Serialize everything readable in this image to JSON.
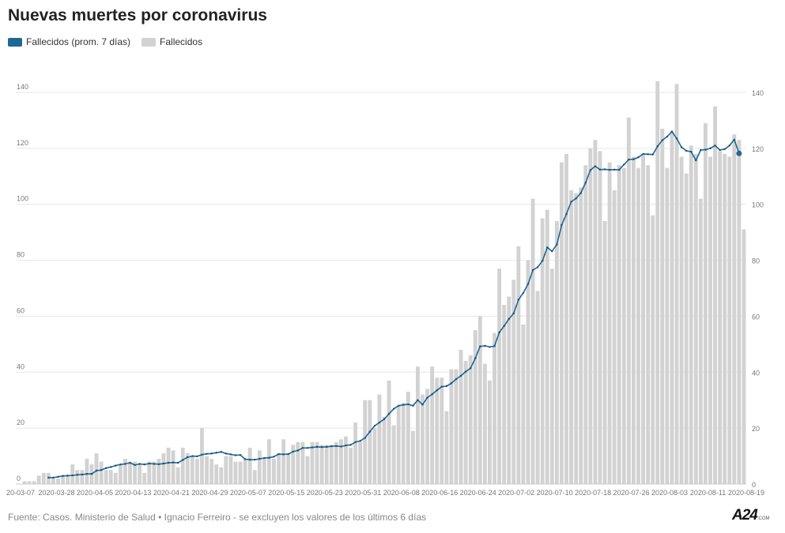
{
  "title": "Nuevas muertes por coronavirus",
  "legend": [
    {
      "label": "Fallecidos (prom. 7 días)",
      "color": "#1f6896"
    },
    {
      "label": "Fallecidos",
      "color": "#d2d2d2"
    }
  ],
  "footer": "Fuente: Casos. Ministerio de Salud • Ignacio Ferreiro - se excluyen los valores de los últimos 6 días",
  "logo": {
    "main": "A24",
    "sub": ".COM"
  },
  "chart_data": {
    "type": "bar",
    "title": "Nuevas muertes por coronavirus",
    "xlabel": "",
    "ylabel": "",
    "ylim": [
      0,
      140
    ],
    "yticks": [
      0,
      20,
      40,
      60,
      80,
      100,
      120,
      140
    ],
    "grid": true,
    "legend_position": "top-left",
    "x_tick_labels": [
      "20-03-07",
      "2020-03-28",
      "2020-04-05",
      "2020-04-13",
      "2020-04-21",
      "2020-04-29",
      "2020-05-07",
      "2020-05-15",
      "2020-05-23",
      "2020-05-31",
      "2020-06-08",
      "2020-06-16",
      "2020-06-24",
      "2020-07-02",
      "2020-07-10",
      "2020-07-18",
      "2020-07-26",
      "2020-08-03",
      "2020-08-11",
      "2020-08-19"
    ],
    "series": [
      {
        "name": "Fallecidos",
        "kind": "bar",
        "color": "#d2d2d2",
        "values": [
          1,
          1,
          1,
          3,
          4,
          4,
          2,
          2,
          3,
          3,
          7,
          5,
          5,
          9,
          7,
          11,
          8,
          5,
          5,
          4,
          7,
          9,
          8,
          8,
          7,
          4,
          8,
          8,
          9,
          11,
          13,
          12,
          6,
          13,
          11,
          10,
          9,
          20,
          10,
          9,
          7,
          6,
          10,
          10,
          8,
          8,
          9,
          13,
          5,
          12,
          9,
          16,
          9,
          11,
          16,
          11,
          14,
          15,
          15,
          10,
          15,
          15,
          14,
          14,
          14,
          15,
          16,
          17,
          13,
          22,
          15,
          30,
          30,
          20,
          32,
          24,
          37,
          21,
          28,
          29,
          33,
          19,
          42,
          32,
          34,
          42,
          38,
          38,
          26,
          41,
          41,
          48,
          44,
          46,
          55,
          60,
          43,
          37,
          54,
          77,
          64,
          67,
          73,
          85,
          57,
          80,
          102,
          69,
          95,
          98,
          77,
          94,
          115,
          118,
          105,
          104,
          106,
          114,
          120,
          123,
          119,
          94,
          115,
          105,
          114,
          113,
          131,
          117,
          113,
          118,
          114,
          96,
          144,
          127,
          113,
          126,
          143,
          117,
          111,
          121,
          118,
          102,
          129,
          117,
          135,
          119,
          118,
          117,
          125,
          123,
          91
        ]
      },
      {
        "name": "Fallecidos (prom. 7 días)",
        "kind": "line",
        "color": "#1f6896",
        "values": [
          null,
          null,
          null,
          null,
          null,
          2.3,
          2.3,
          2.6,
          2.9,
          3.0,
          3.1,
          3.3,
          3.4,
          3.6,
          3.6,
          4.8,
          5.0,
          5.7,
          6.1,
          6.6,
          7.0,
          7.2,
          7.6,
          6.8,
          7.2,
          7.0,
          7.3,
          7.2,
          7.1,
          7.3,
          7.6,
          7.7,
          7.6,
          8.6,
          9.6,
          10.0,
          9.9,
          10.5,
          10.8,
          10.9,
          11.2,
          11.5,
          10.9,
          10.6,
          10.3,
          10.4,
          8.9,
          8.7,
          8.7,
          9.0,
          9.3,
          9.4,
          9.8,
          10.7,
          10.6,
          10.7,
          11.6,
          12.0,
          12.9,
          12.9,
          13.1,
          13.3,
          13.2,
          13.3,
          13.5,
          13.6,
          13.4,
          13.8,
          14.0,
          15.0,
          15.4,
          16.5,
          18.7,
          20.8,
          22.0,
          23.2,
          25.1,
          26.9,
          28.0,
          28.3,
          28.5,
          28.0,
          30.0,
          28.4,
          30.9,
          32.1,
          33.5,
          34.8,
          35.0,
          36.0,
          37.5,
          38.7,
          40.2,
          41.4,
          45.0,
          49.2,
          49.4,
          49.0,
          49.3,
          54.2,
          56.5,
          59.0,
          61.0,
          65.9,
          68.3,
          71.5,
          76.5,
          77.5,
          79.8,
          84.6,
          83.2,
          85.6,
          92.6,
          96.5,
          100.9,
          102.1,
          104.0,
          107.7,
          112.2,
          113.6,
          112.4,
          112.5,
          112.3,
          112.4,
          112.3,
          114.2,
          116.0,
          116.1,
          116.8,
          118.0,
          117.9,
          117.8,
          120.7,
          122.9,
          124.2,
          126.0,
          123.5,
          120.4,
          119.1,
          118.8,
          115.7,
          119.4,
          119.5,
          120.0,
          121.0,
          119.4,
          119.7,
          121.0,
          123.1,
          118.2
        ]
      }
    ]
  }
}
